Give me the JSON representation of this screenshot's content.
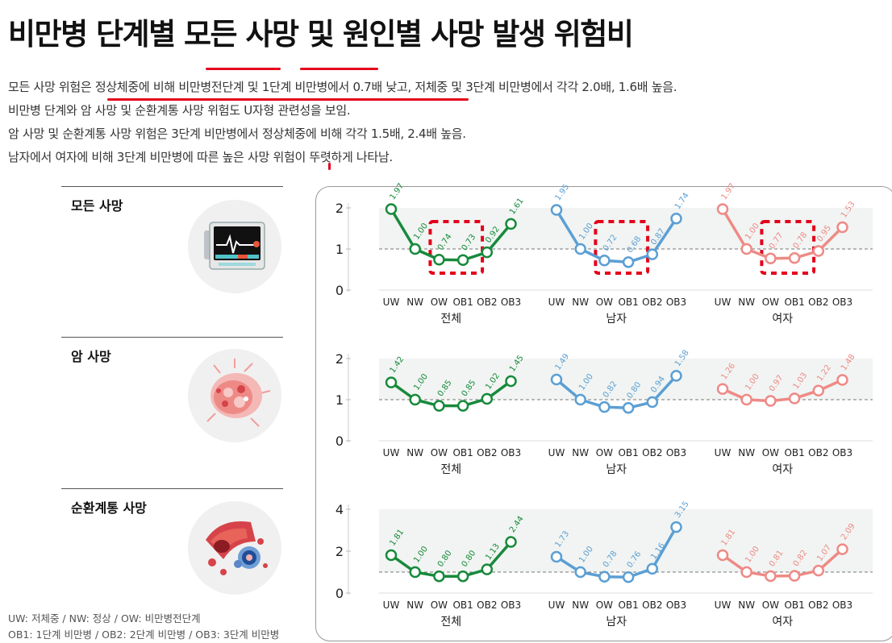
{
  "title": "비만병 단계별 모든 사망 및 원인별 사망 발생 위험비",
  "description": [
    "모든 사망 위험은 정상체중에 비해 비만병전단계 및 1단계 비만병에서 0.7배 낮고, 저체중 및 3단계 비만병에서 각각 2.0배, 1.6배 높음.",
    "비만병 단계와 암 사망 및 순환계통 사망 위험도 U자형 관련성을 보임.",
    "암 사망 및 순환계통 사망 위험은 3단계 비만병에서 정상체중에 비해 각각 1.5배, 2.4배 높음.",
    "남자에서 여자에 비해 3단계 비만병에 따른 높은 사망 위험이 뚜렷하게 나타남."
  ],
  "sections": [
    {
      "label": "모든 사망",
      "icon": "heart-monitor-icon"
    },
    {
      "label": "암 사망",
      "icon": "cancer-cell-icon"
    },
    {
      "label": "순환계통 사망",
      "icon": "blood-vessel-icon"
    }
  ],
  "footnote": [
    "UW: 저체중 / NW: 정상 / OW: 비만병전단계",
    "OB1: 1단계 비만병 / OB2: 2단계 비만병 / OB3: 3단계 비만병"
  ],
  "colors": {
    "전체": "#178a3c",
    "남자": "#5b9fd4",
    "여자": "#ee8a86",
    "highlight": "#e3001b"
  },
  "chart_data": [
    {
      "type": "line",
      "title": "모든 사망",
      "categories": [
        "UW",
        "NW",
        "OW",
        "OB1",
        "OB2",
        "OB3"
      ],
      "ylim": [
        0,
        2
      ],
      "yticks": [
        0,
        1,
        2
      ],
      "reference_line": 1,
      "series": [
        {
          "name": "전체",
          "values": [
            1.97,
            1.0,
            0.74,
            0.73,
            0.92,
            1.61
          ],
          "labels": [
            "1.97",
            "1.00",
            "0.74",
            "0.73",
            "0.92",
            "1.61"
          ]
        },
        {
          "name": "남자",
          "values": [
            1.95,
            1.0,
            0.72,
            0.68,
            0.87,
            1.74
          ],
          "labels": [
            "1.95",
            "1.00",
            "0.72",
            "0.68",
            "0.87",
            "1.74"
          ]
        },
        {
          "name": "여자",
          "values": [
            1.97,
            1.0,
            0.77,
            0.78,
            0.95,
            1.53
          ],
          "labels": [
            "1.97",
            "1.00",
            "0.77",
            "0.78",
            "0.95",
            "1.53"
          ]
        }
      ],
      "highlighted": {
        "전체": [
          "OW",
          "OB1"
        ],
        "남자": [
          "OW",
          "OB1"
        ],
        "여자": [
          "OW",
          "OB1"
        ]
      }
    },
    {
      "type": "line",
      "title": "암 사망",
      "categories": [
        "UW",
        "NW",
        "OW",
        "OB1",
        "OB2",
        "OB3"
      ],
      "ylim": [
        0,
        2
      ],
      "yticks": [
        0,
        1,
        2
      ],
      "reference_line": 1,
      "series": [
        {
          "name": "전체",
          "values": [
            1.42,
            1.0,
            0.85,
            0.85,
            1.02,
            1.45
          ],
          "labels": [
            "1.42",
            "1.00",
            "0.85",
            "0.85",
            "1.02",
            "1.45"
          ]
        },
        {
          "name": "남자",
          "values": [
            1.49,
            1.0,
            0.82,
            0.8,
            0.94,
            1.58
          ],
          "labels": [
            "1.49",
            "1.00",
            "0.82",
            "0.80",
            "0.94",
            "1.58"
          ]
        },
        {
          "name": "여자",
          "values": [
            1.26,
            1.0,
            0.97,
            1.03,
            1.22,
            1.48
          ],
          "labels": [
            "1.26",
            "1.00",
            "0.97",
            "1.03",
            "1.22",
            "1.48"
          ]
        }
      ]
    },
    {
      "type": "line",
      "title": "순환계통 사망",
      "categories": [
        "UW",
        "NW",
        "OW",
        "OB1",
        "OB2",
        "OB3"
      ],
      "ylim": [
        0,
        4
      ],
      "yticks": [
        0,
        2,
        4
      ],
      "reference_line": 1,
      "series": [
        {
          "name": "전체",
          "values": [
            1.81,
            1.0,
            0.8,
            0.8,
            1.13,
            2.44
          ],
          "labels": [
            "1.81",
            "1.00",
            "0.80",
            "0.80",
            "1.13",
            "2.44"
          ]
        },
        {
          "name": "남자",
          "values": [
            1.73,
            1.0,
            0.78,
            0.76,
            1.16,
            3.15
          ],
          "labels": [
            "1.73",
            "1.00",
            "0.78",
            "0.76",
            "1.16",
            "3.15"
          ]
        },
        {
          "name": "여자",
          "values": [
            1.81,
            1.0,
            0.81,
            0.82,
            1.07,
            2.09
          ],
          "labels": [
            "1.81",
            "1.00",
            "0.81",
            "0.82",
            "1.07",
            "2.09"
          ]
        }
      ]
    }
  ]
}
